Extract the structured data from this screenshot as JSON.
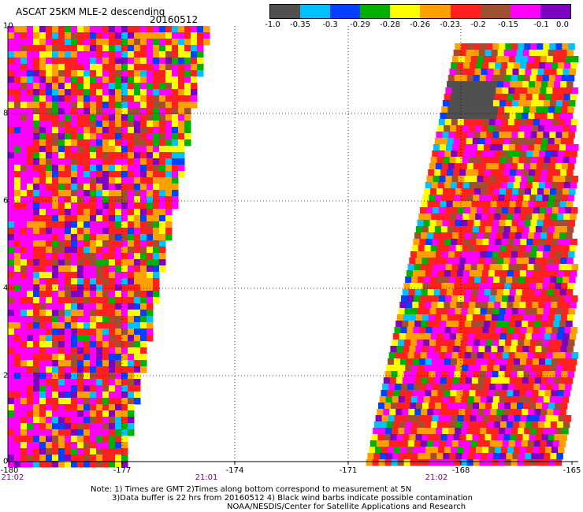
{
  "header": {
    "title": "ASCAT 25KM MLE-2 descending",
    "date": "20160512"
  },
  "colorbar": {
    "labels": [
      "-1.0",
      "-0.35",
      "-0.3",
      "-0.29",
      "-0.28",
      "-0.26",
      "-0.23",
      "-0.2",
      "-0.15",
      "-0.1",
      "0.0"
    ],
    "colors": [
      "#505050",
      "#00c0ff",
      "#0040ff",
      "#00b000",
      "#ffff00",
      "#ffa000",
      "#ff2020",
      "#a05030",
      "#ff00ff",
      "#8000c0"
    ]
  },
  "map": {
    "lon_min": -180,
    "lon_max": -165,
    "lat_min": 0,
    "lat_max": 10,
    "lat_ticks": [
      "10",
      "8",
      "6",
      "4",
      "2",
      "0"
    ],
    "lon_ticks": [
      "-180",
      "-177",
      "-174",
      "-171",
      "-168",
      "-165"
    ],
    "time_ticks": [
      "21:02",
      "21:01",
      "21:02"
    ],
    "grid": true
  },
  "notes": {
    "line1": "Note: 1) Times are GMT 2)Times along bottom correspond to measurement at 5N",
    "line2": "3)Data buffer is 22 hrs from 20160512 4) Black wind barbs indicate possible contamination",
    "line3": "NOAA/NESDIS/Center for Satellite Applications and Research"
  }
}
